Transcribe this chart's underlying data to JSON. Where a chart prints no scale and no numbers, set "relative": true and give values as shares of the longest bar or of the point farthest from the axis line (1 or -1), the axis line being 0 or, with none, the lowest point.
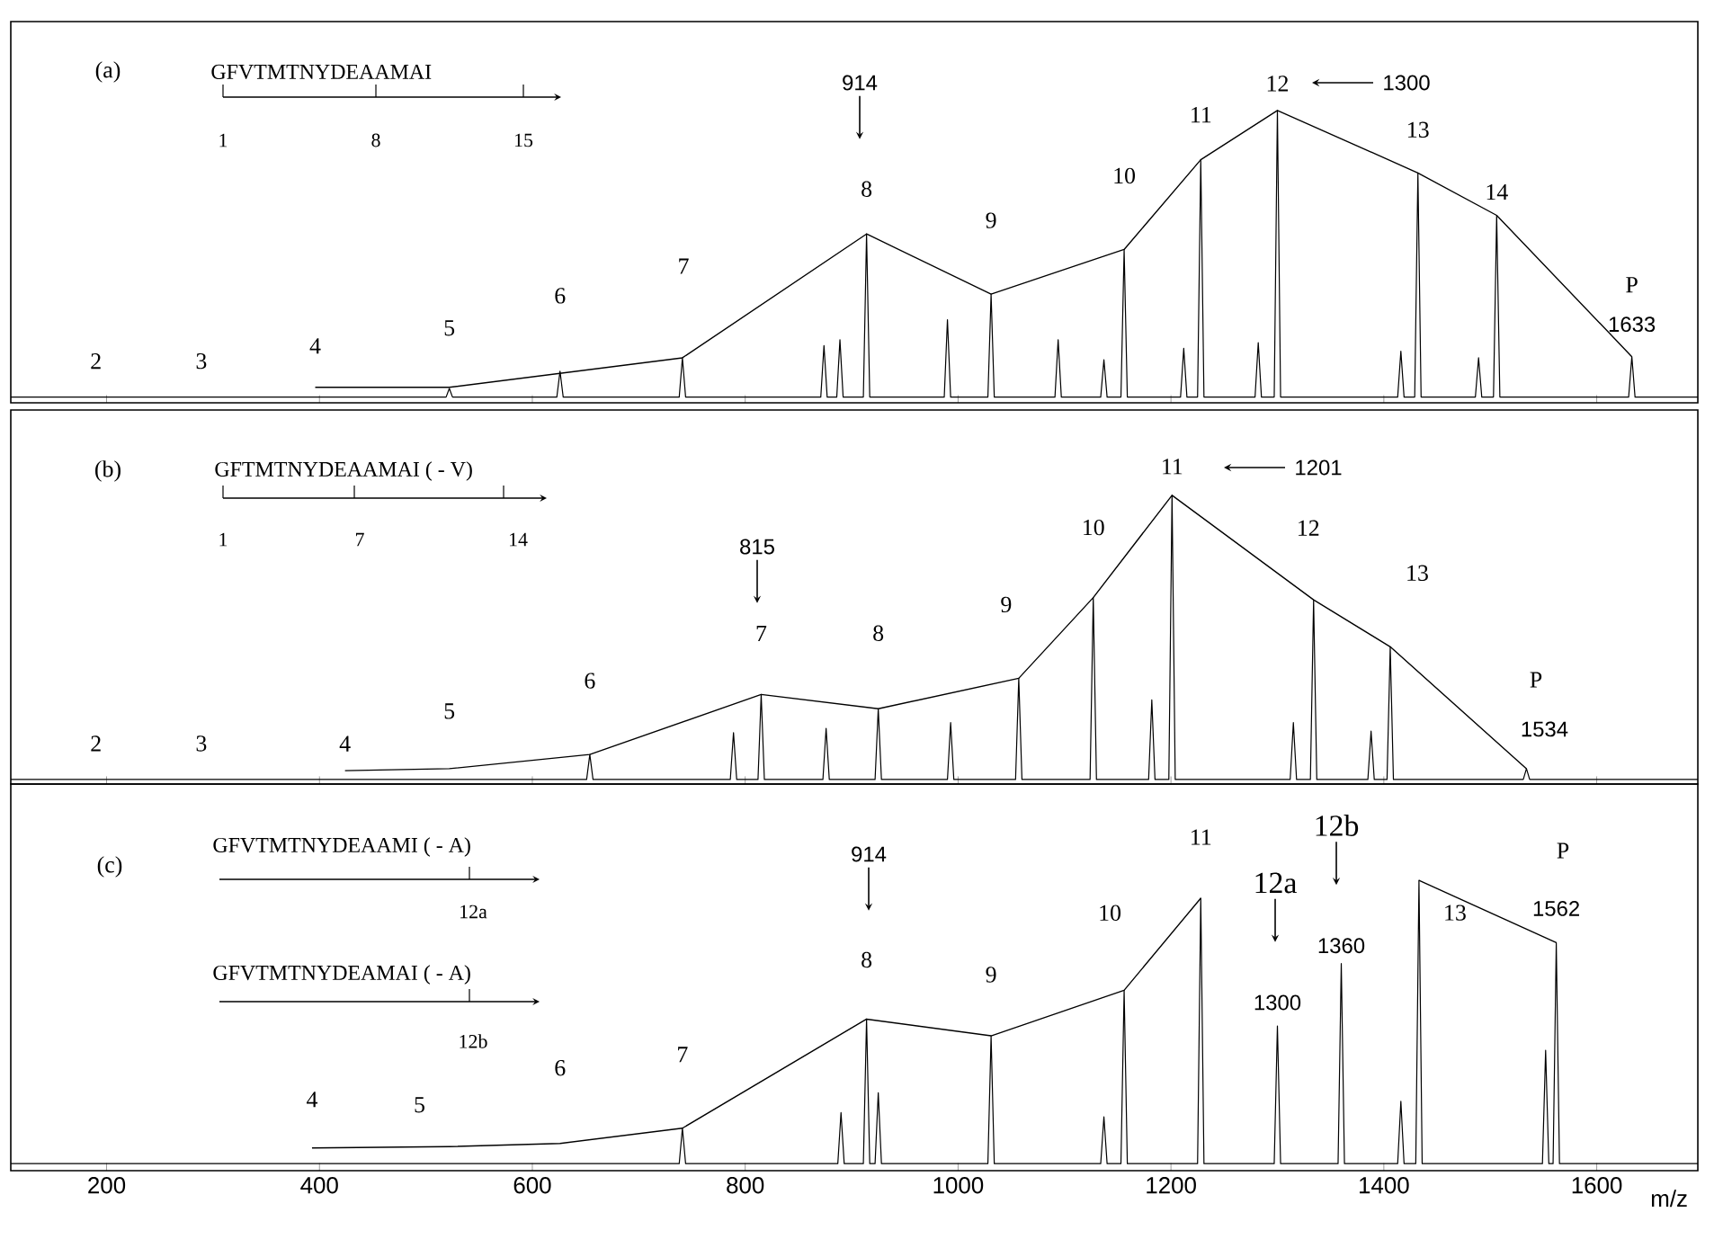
{
  "chart_data": [
    {
      "type": "line",
      "relative": true,
      "xlim": [
        110,
        1695
      ],
      "xticks": [
        200,
        400,
        600,
        800,
        1000,
        1200,
        1400,
        1600
      ],
      "tick_labels": false,
      "series": [
        {
          "color": "#000000",
          "x": [
            110,
            519,
            522,
            525,
            623,
            626,
            629,
            738,
            741,
            744,
            871,
            874,
            877,
            886,
            889,
            892,
            911,
            914,
            917,
            987,
            990,
            993,
            1028,
            1031,
            1034,
            1091,
            1094,
            1097,
            1134,
            1137,
            1140,
            1153,
            1156,
            1159,
            1209,
            1212,
            1215,
            1225,
            1228,
            1231,
            1279,
            1282,
            1285,
            1297,
            1300,
            1303,
            1413,
            1416,
            1419,
            1429,
            1432,
            1435,
            1486,
            1489,
            1492,
            1503,
            1506,
            1509,
            1630,
            1633,
            1636,
            1695
          ],
          "values": [
            0,
            0,
            0.03,
            0,
            0,
            0.09,
            0,
            0,
            0.137,
            0,
            0,
            0.18,
            0,
            0,
            0.2,
            0,
            0,
            0.569,
            0,
            0,
            0.27,
            0,
            0,
            0.359,
            0,
            0,
            0.2,
            0,
            0,
            0.13,
            0,
            0,
            0.515,
            0,
            0,
            0.17,
            0,
            0,
            0.828,
            0,
            0,
            0.19,
            0,
            0,
            1,
            0,
            0,
            0.16,
            0,
            0,
            0.782,
            0,
            0,
            0.137,
            0,
            0,
            0.634,
            0,
            0,
            0.141,
            0,
            0
          ]
        },
        {
          "color": "#000000",
          "x": [
            396,
            522,
            741,
            914,
            1031,
            1156,
            1228,
            1300,
            1432,
            1506,
            1633
          ],
          "values": [
            0.034,
            0.034,
            0.137,
            0.569,
            0.359,
            0.515,
            0.828,
            1,
            0.782,
            0.634,
            0.141
          ]
        }
      ],
      "annotations": [
        "(a)",
        "GFVTMTNYDEAAMAI",
        "1",
        "8",
        "15",
        {
          "text": "2",
          "x": 190,
          "y": 0
        },
        {
          "text": "3",
          "x": 289,
          "y": 0
        },
        {
          "text": "4",
          "x": 396,
          "y": 0.034
        },
        {
          "text": "5",
          "x": 522,
          "y": 0.034
        },
        {
          "text": "6",
          "x": 626,
          "y": 0.09
        },
        "7",
        {
          "text": "8",
          "x": 914,
          "y": 0.569
        },
        {
          "text": "9",
          "x": 1031,
          "y": 0.359
        },
        {
          "text": "10",
          "x": 1156,
          "y": 0.515
        },
        {
          "text": "11",
          "x": 1228,
          "y": 0.828
        },
        {
          "text": "12",
          "x": 1300,
          "y": 1
        },
        {
          "text": "13",
          "x": 1432,
          "y": 0.782
        },
        {
          "text": "14",
          "x": 1506,
          "y": 0.634
        },
        {
          "text": "P",
          "x": 1633,
          "y": 0.141
        },
        {
          "text": "1633",
          "x": 1633,
          "y": 0.141
        },
        "914",
        "1300"
      ]
    },
    {
      "type": "line",
      "relative": true,
      "xlim": [
        110,
        1695
      ],
      "xticks": [
        200,
        400,
        600,
        800,
        1000,
        1200,
        1400,
        1600
      ],
      "tick_labels": false,
      "series": [
        {
          "color": "#000000",
          "x": [
            110,
            651,
            654,
            657,
            786,
            789,
            792,
            812,
            815,
            818,
            873,
            876,
            879,
            922,
            925,
            928,
            990,
            993,
            996,
            1054,
            1057,
            1060,
            1124,
            1127,
            1130,
            1179,
            1182,
            1185,
            1198,
            1201,
            1204,
            1312,
            1315,
            1318,
            1331,
            1334,
            1337,
            1385,
            1388,
            1391,
            1403,
            1406,
            1409,
            1531,
            1534,
            1537,
            1695
          ],
          "values": [
            0,
            0,
            0.088,
            0,
            0,
            0.165,
            0,
            0,
            0.299,
            0,
            0,
            0.18,
            0,
            0,
            0.249,
            0,
            0,
            0.2,
            0,
            0,
            0.356,
            0,
            0,
            0.64,
            0,
            0,
            0.28,
            0,
            0,
            1,
            0,
            0,
            0.2,
            0,
            0,
            0.632,
            0,
            0,
            0.17,
            0,
            0,
            0.467,
            0,
            0,
            0.038,
            0,
            0
          ]
        },
        {
          "color": "#000000",
          "x": [
            424,
            522,
            654,
            815,
            925,
            1057,
            1127,
            1201,
            1334,
            1406,
            1534
          ],
          "values": [
            0.031,
            0.038,
            0.088,
            0.299,
            0.249,
            0.356,
            0.64,
            1,
            0.632,
            0.467,
            0.038
          ]
        }
      ],
      "annotations": [
        "(b)",
        "GFTMTNYDEAAMAI ( - V)",
        "1",
        "7",
        "14",
        {
          "text": "2",
          "x": 190,
          "y": 0
        },
        {
          "text": "3",
          "x": 289,
          "y": 0
        },
        {
          "text": "4",
          "x": 424,
          "y": 0.031
        },
        {
          "text": "5",
          "x": 522,
          "y": 0.038
        },
        {
          "text": "6",
          "x": 654,
          "y": 0.088
        },
        {
          "text": "7",
          "x": 815,
          "y": 0.299
        },
        {
          "text": "8",
          "x": 925,
          "y": 0.249
        },
        {
          "text": "9",
          "x": 1057,
          "y": 0.356
        },
        {
          "text": "10",
          "x": 1127,
          "y": 0.64
        },
        {
          "text": "11",
          "x": 1201,
          "y": 1
        },
        {
          "text": "12",
          "x": 1334,
          "y": 0.632
        },
        {
          "text": "13",
          "x": 1406,
          "y": 0.467
        },
        "P",
        {
          "text": "1534",
          "x": 1534,
          "y": 0.038
        },
        "815",
        "1201"
      ]
    },
    {
      "type": "line",
      "relative": true,
      "xlim": [
        110,
        1695
      ],
      "xticks": [
        200,
        400,
        600,
        800,
        1000,
        1200,
        1400,
        1600
      ],
      "tick_labels": "x",
      "xlabel": "m/z",
      "series": [
        {
          "color": "#000000",
          "x": [
            110,
            738,
            741,
            744,
            887,
            890,
            893,
            911,
            914,
            917,
            922,
            925,
            928,
            1028,
            1031,
            1034,
            1134,
            1137,
            1140,
            1153,
            1156,
            1159,
            1225,
            1228,
            1231,
            1297,
            1300,
            1303,
            1357,
            1360,
            1363,
            1413,
            1416,
            1419,
            1430,
            1433,
            1436,
            1549,
            1552,
            1555,
            1559,
            1562,
            1565,
            1695
          ],
          "values": [
            0,
            0,
            0.125,
            0,
            0,
            0.18,
            0,
            0,
            0.51,
            0,
            0,
            0.25,
            0,
            0,
            0.451,
            0,
            0,
            0.165,
            0,
            0,
            0.612,
            0,
            0,
            0.937,
            0,
            0,
            0.486,
            0,
            0,
            0.706,
            0,
            0,
            0.22,
            0,
            0,
            1,
            0,
            0,
            0.4,
            0,
            0,
            0.78,
            0,
            0
          ]
        },
        {
          "color": "#000000",
          "x": [
            393,
            522,
            626,
            741,
            914,
            1031,
            1156,
            1228,
            1330,
            1433,
            1562
          ],
          "values": [
            0.055,
            0.06,
            0.071,
            0.125,
            0.51,
            0.451,
            0.612,
            0.937,
            null,
            1,
            0.78
          ]
        }
      ],
      "annotations": [
        "(c)",
        "GFVTMTNYDEAAMI ( - A)",
        "12a",
        "GFVTMTNYDEAMAI ( - A)",
        "12b",
        {
          "text": "4",
          "x": 393,
          "y": 0.055
        },
        {
          "text": "5",
          "x": 494,
          "y": 0.055
        },
        {
          "text": "6",
          "x": 626,
          "y": 0.071
        },
        {
          "text": "7",
          "x": 741,
          "y": 0.125
        },
        {
          "text": "8",
          "x": 914,
          "y": 0.51
        },
        {
          "text": "9",
          "x": 1031,
          "y": 0.451
        },
        {
          "text": "10",
          "x": 1156,
          "y": 0.612
        },
        {
          "text": "11",
          "x": 1228,
          "y": 0.937
        },
        "12a",
        {
          "text": "1300",
          "x": 1300,
          "y": 0.486
        },
        "12b",
        {
          "text": "1360",
          "x": 1360,
          "y": 0.706
        },
        {
          "text": "13",
          "x": 1433,
          "y": 1
        },
        "P",
        {
          "text": "1562",
          "x": 1562,
          "y": 0.78
        },
        "914"
      ]
    }
  ]
}
